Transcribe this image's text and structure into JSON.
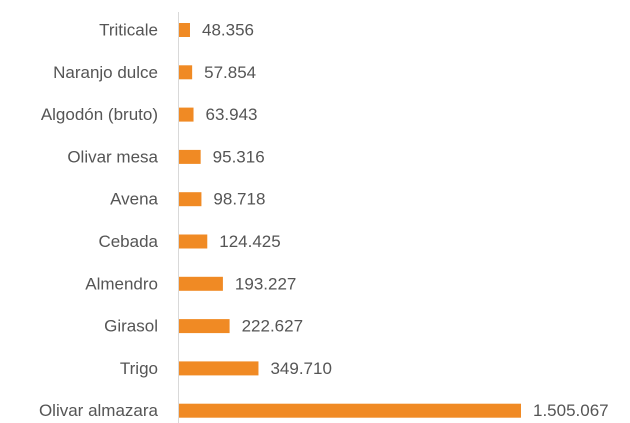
{
  "chart_data": {
    "type": "bar",
    "orientation": "horizontal",
    "categories": [
      "Triticale",
      "Naranjo dulce",
      "Algodón (bruto)",
      "Olivar mesa",
      "Avena",
      "Cebada",
      "Almendro",
      "Girasol",
      "Trigo",
      "Olivar almazara"
    ],
    "values": [
      48356,
      57854,
      63943,
      95316,
      98718,
      124425,
      193227,
      222627,
      349710,
      1505067
    ],
    "value_labels": [
      "48.356",
      "57.854",
      "63.943",
      "95.316",
      "98.718",
      "124.425",
      "193.227",
      "222.627",
      "349.710",
      "1.505.067"
    ],
    "color": "#f08a24"
  }
}
